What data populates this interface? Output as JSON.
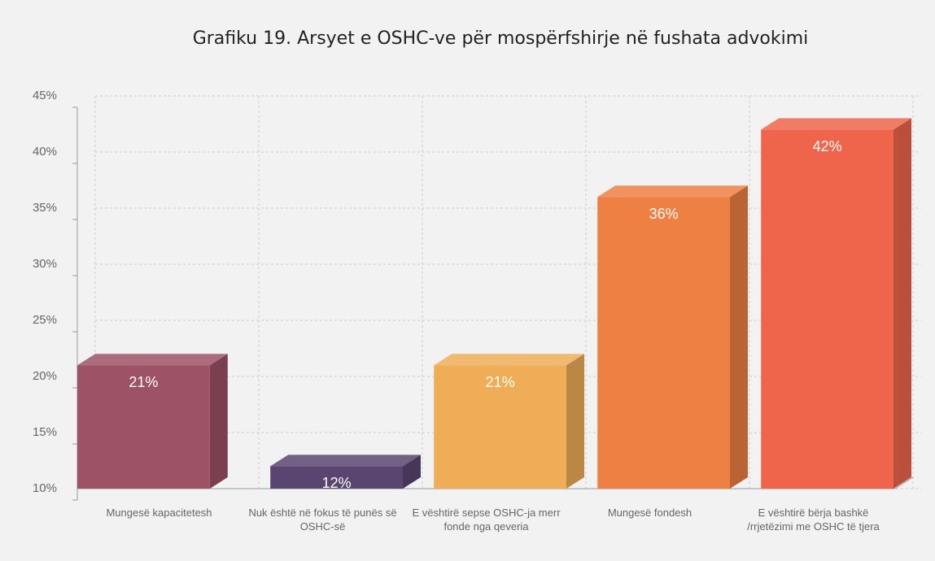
{
  "chart_data": {
    "type": "bar3d",
    "title": "Grafiku 19. Arsyet e OSHC-ve për mospërfshirje në fushata advokimi",
    "categories": [
      "Mungesë kapacitetesh",
      "Nuk është në fokus të punës së OSHC-së",
      "E vështirë sepse OSHC-ja merr fonde nga qeveria",
      "Mungesë fondesh",
      "E vështirë bërja bashkë /rrjetëzimi me OSHC të tjera"
    ],
    "values": [
      21,
      12,
      21,
      36,
      42
    ],
    "value_labels": [
      "21%",
      "12%",
      "21%",
      "36%",
      "42%"
    ],
    "colors": [
      "#9e5266",
      "#5a4570",
      "#f0ad57",
      "#ef8044",
      "#ef654b"
    ],
    "ylim": [
      10,
      45
    ],
    "yticks": [
      {
        "value": 10,
        "label": "10%"
      },
      {
        "value": 15,
        "label": "15%"
      },
      {
        "value": 20,
        "label": "20%"
      },
      {
        "value": 25,
        "label": "25%"
      },
      {
        "value": 30,
        "label": "30%"
      },
      {
        "value": 35,
        "label": "35%"
      },
      {
        "value": 40,
        "label": "40%"
      },
      {
        "value": 45,
        "label": "45%"
      }
    ],
    "grid": true
  }
}
